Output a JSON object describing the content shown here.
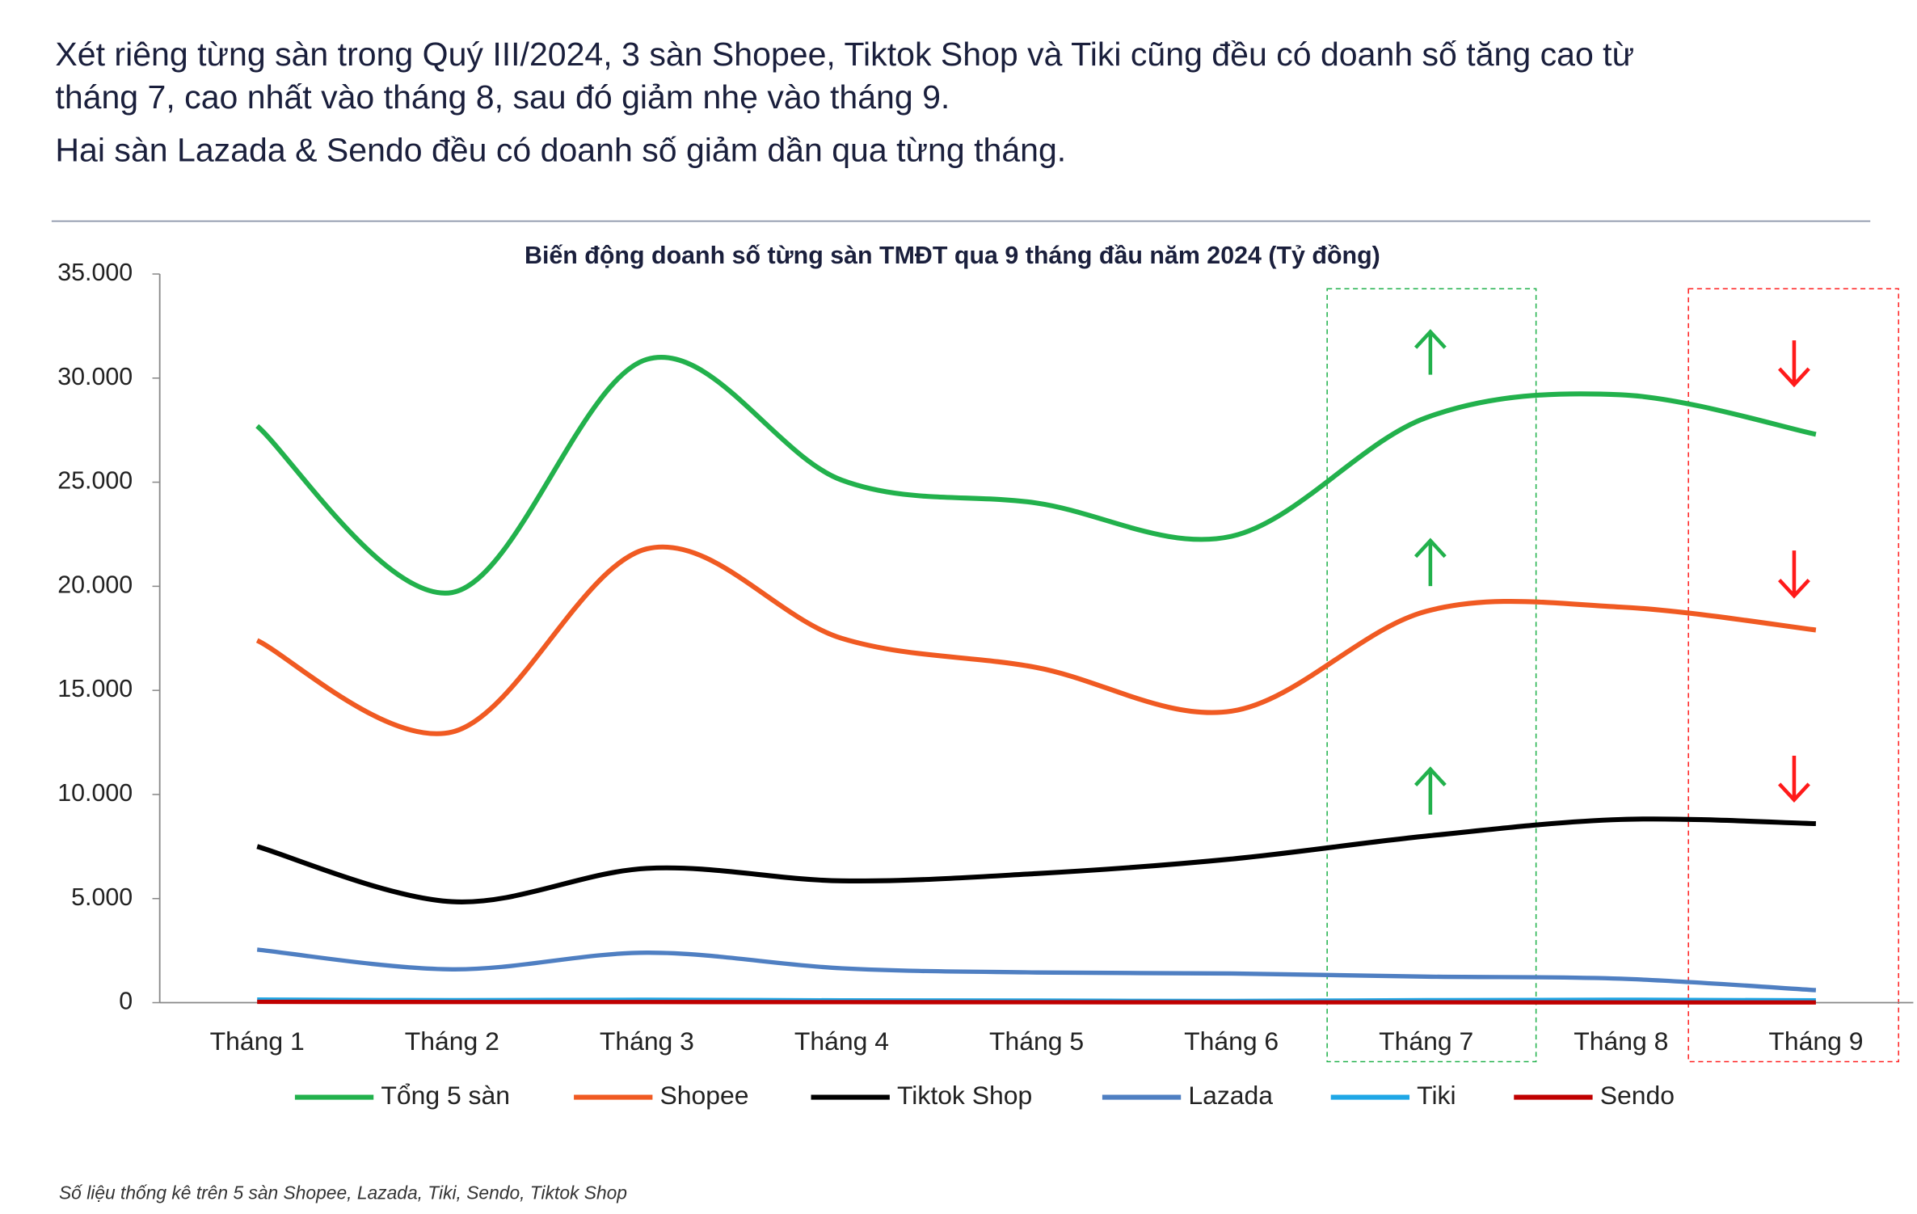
{
  "header": {
    "lines": [
      "Xét riêng từng sàn trong Quý III/2024, 3 sàn Shopee, Tiktok Shop và Tiki cũng đều có doanh số tăng cao từ",
      "tháng 7, cao nhất vào tháng 8, sau đó giảm nhẹ vào tháng 9.",
      "Hai sàn Lazada & Sendo đều có doanh số giảm dần qua từng tháng."
    ]
  },
  "footer": {
    "source": "Số liệu thống kê trên 5 sàn Shopee, Lazada, Tiki, Sendo, Tiktok Shop"
  },
  "chart_data": {
    "type": "line",
    "title": "Biến động doanh số từng sàn TMĐT qua 9 tháng đầu năm 2024 (Tỷ đồng)",
    "categories": [
      "Tháng 1",
      "Tháng 2",
      "Tháng 3",
      "Tháng 4",
      "Tháng 5",
      "Tháng 6",
      "Tháng 7",
      "Tháng 8",
      "Tháng 9"
    ],
    "series": [
      {
        "name": "Tổng 5 sàn",
        "color": "#22b14c",
        "values": [
          27700,
          19700,
          30900,
          25100,
          24000,
          22400,
          28100,
          29200,
          27300
        ]
      },
      {
        "name": "Shopee",
        "color": "#f05a22",
        "values": [
          17400,
          13000,
          21800,
          17500,
          16100,
          14000,
          18800,
          19000,
          17900
        ]
      },
      {
        "name": "Tiktok Shop",
        "color": "#000000",
        "values": [
          7500,
          4850,
          6450,
          5850,
          6200,
          6900,
          8000,
          8800,
          8600
        ]
      },
      {
        "name": "Lazada",
        "color": "#4f7fc2",
        "values": [
          2550,
          1600,
          2400,
          1650,
          1450,
          1400,
          1250,
          1150,
          600
        ]
      },
      {
        "name": "Tiki",
        "color": "#1fa7e6",
        "values": [
          150,
          120,
          140,
          110,
          100,
          80,
          120,
          140,
          110
        ]
      },
      {
        "name": "Sendo",
        "color": "#c00000",
        "values": [
          40,
          30,
          30,
          25,
          20,
          15,
          15,
          10,
          10
        ]
      }
    ],
    "ylim": [
      0,
      35000
    ],
    "yticks": [
      0,
      {
        "value": 5000,
        "label": "5.000"
      },
      {
        "value": 10000,
        "label": "10.000"
      },
      {
        "value": 15000,
        "label": "15.000"
      },
      {
        "value": 20000,
        "label": "20.000"
      },
      {
        "value": 25000,
        "label": "25.000"
      },
      {
        "value": 30000,
        "label": "30.000"
      },
      {
        "value": 35000,
        "label": "35.000"
      }
    ],
    "grid": false,
    "legend": "bottom"
  }
}
